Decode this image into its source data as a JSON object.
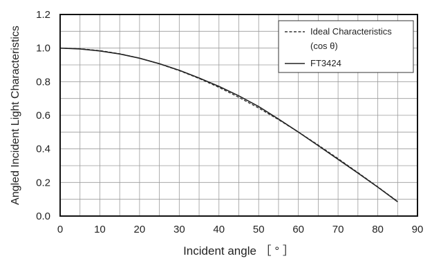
{
  "chart_data": {
    "type": "line",
    "title": "",
    "xlabel": "Incident angle ［ ° ］",
    "ylabel": "Angled Incident Light Characteristics",
    "xlim": [
      0,
      90
    ],
    "ylim": [
      0,
      1.2
    ],
    "x_ticks": [
      0,
      10,
      20,
      30,
      40,
      50,
      60,
      70,
      80,
      90
    ],
    "x_tick_labels": [
      "0",
      "10",
      "20",
      "30",
      "40",
      "50",
      "60",
      "70",
      "80",
      "90"
    ],
    "y_ticks": [
      0,
      0.2,
      0.4,
      0.6,
      0.8,
      1.0,
      1.2
    ],
    "y_tick_labels": [
      "0.0",
      "0.2",
      "0.4",
      "0.6",
      "0.8",
      "1.0",
      "1.2"
    ],
    "grid": true,
    "legend_position": "top-right",
    "series": [
      {
        "name": "Ideal Characteristics",
        "name_line2": "(cos θ)",
        "style": "dashed",
        "color": "#333333",
        "x": [
          0,
          5,
          10,
          15,
          20,
          25,
          30,
          35,
          40,
          45,
          50,
          55,
          60,
          65,
          70,
          75,
          80,
          85
        ],
        "values": [
          1.0,
          0.996,
          0.985,
          0.966,
          0.94,
          0.906,
          0.866,
          0.819,
          0.766,
          0.707,
          0.643,
          0.574,
          0.5,
          0.423,
          0.342,
          0.259,
          0.174,
          0.087
        ]
      },
      {
        "name": "FT3424",
        "style": "solid",
        "color": "#222222",
        "x": [
          0,
          5,
          10,
          15,
          20,
          25,
          30,
          35,
          40,
          45,
          50,
          55,
          60,
          65,
          70,
          75,
          80,
          85
        ],
        "values": [
          1.0,
          0.995,
          0.983,
          0.965,
          0.94,
          0.907,
          0.868,
          0.822,
          0.772,
          0.716,
          0.652,
          0.578,
          0.5,
          0.419,
          0.338,
          0.256,
          0.172,
          0.085
        ]
      }
    ]
  }
}
